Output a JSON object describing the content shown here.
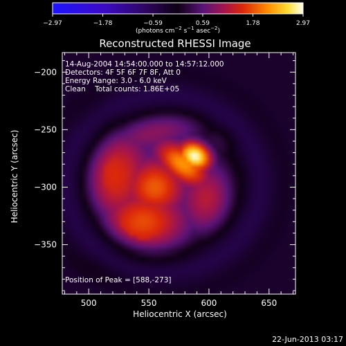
{
  "chart_data": {
    "type": "heatmap",
    "title": "Reconstructed RHESSI Image",
    "xlabel": "Heliocentric X (arcsec)",
    "ylabel": "Heliocentric Y (arcsec)",
    "xlim": [
      478,
      672
    ],
    "ylim": [
      -393,
      -183
    ],
    "x_ticks": [
      "500",
      "550",
      "600",
      "650"
    ],
    "x_tick_values": [
      500,
      550,
      600,
      650
    ],
    "y_ticks": [
      "-200",
      "-250",
      "-300",
      "-350"
    ],
    "y_tick_values": [
      -200,
      -250,
      -300,
      -350
    ],
    "colorbar": {
      "range": [
        -2.97,
        2.97
      ],
      "tick_labels": [
        "-2.97",
        "-1.78",
        "-0.59",
        "0.59",
        "1.78",
        "2.97"
      ],
      "tick_values": [
        -2.97,
        -1.78,
        -0.59,
        0.59,
        1.78,
        2.97
      ],
      "unit_label": "(photons cm^-2 s^-1 asec^-2)",
      "colormap": "blue-black-red-yellow-white"
    },
    "annotations": [
      "14-Aug-2004 14:54:00.000 to 14:57:12.000",
      "Detectors: 4F 5F 6F 7F 8F, Att 0",
      "Energy Range: 3.0 - 6.0 keV",
      "Clean    Total counts: 1.86E+05"
    ],
    "peak_label": "Position of Peak = [588,-273]",
    "peak_position": [
      588,
      -273
    ],
    "sources": [
      {
        "x": 588,
        "y": -273,
        "value": 2.97,
        "sx": 11,
        "sy": 9,
        "rot": -35
      },
      {
        "x": 578,
        "y": -280,
        "value": 2.2,
        "sx": 20,
        "sy": 11,
        "rot": -40
      },
      {
        "x": 555,
        "y": -300,
        "value": 1.85,
        "sx": 20,
        "sy": 20,
        "rot": 0
      },
      {
        "x": 545,
        "y": -330,
        "value": 1.75,
        "sx": 28,
        "sy": 22,
        "rot": 0
      },
      {
        "x": 522,
        "y": -290,
        "value": 1.55,
        "sx": 23,
        "sy": 33,
        "rot": 0
      },
      {
        "x": 598,
        "y": -310,
        "value": 1.25,
        "sx": 18,
        "sy": 24,
        "rot": 0
      },
      {
        "x": 535,
        "y": -365,
        "value": 1.15,
        "sx": 40,
        "sy": 14,
        "rot": 0
      },
      {
        "x": 555,
        "y": -250,
        "value": 1.0,
        "sx": 40,
        "sy": 14,
        "rot": 15
      },
      {
        "x": 510,
        "y": -245,
        "value": 0.85,
        "sx": 16,
        "sy": 18,
        "rot": 0
      },
      {
        "x": 615,
        "y": -255,
        "value": 0.7,
        "sx": 14,
        "sy": 12,
        "rot": 0
      },
      {
        "x": 628,
        "y": -300,
        "value": 0.45,
        "sx": 10,
        "sy": 28,
        "rot": 0
      },
      {
        "x": 495,
        "y": -340,
        "value": 0.55,
        "sx": 15,
        "sy": 30,
        "rot": 0
      }
    ],
    "background_value": 0.25,
    "dark_ring": {
      "cx": 562,
      "cy": -297,
      "radius": 82,
      "value": -0.55,
      "width": 14
    },
    "corner_haze_value": -0.25
  },
  "footer": {
    "timestamp": "22-Jun-2013 03:17"
  }
}
